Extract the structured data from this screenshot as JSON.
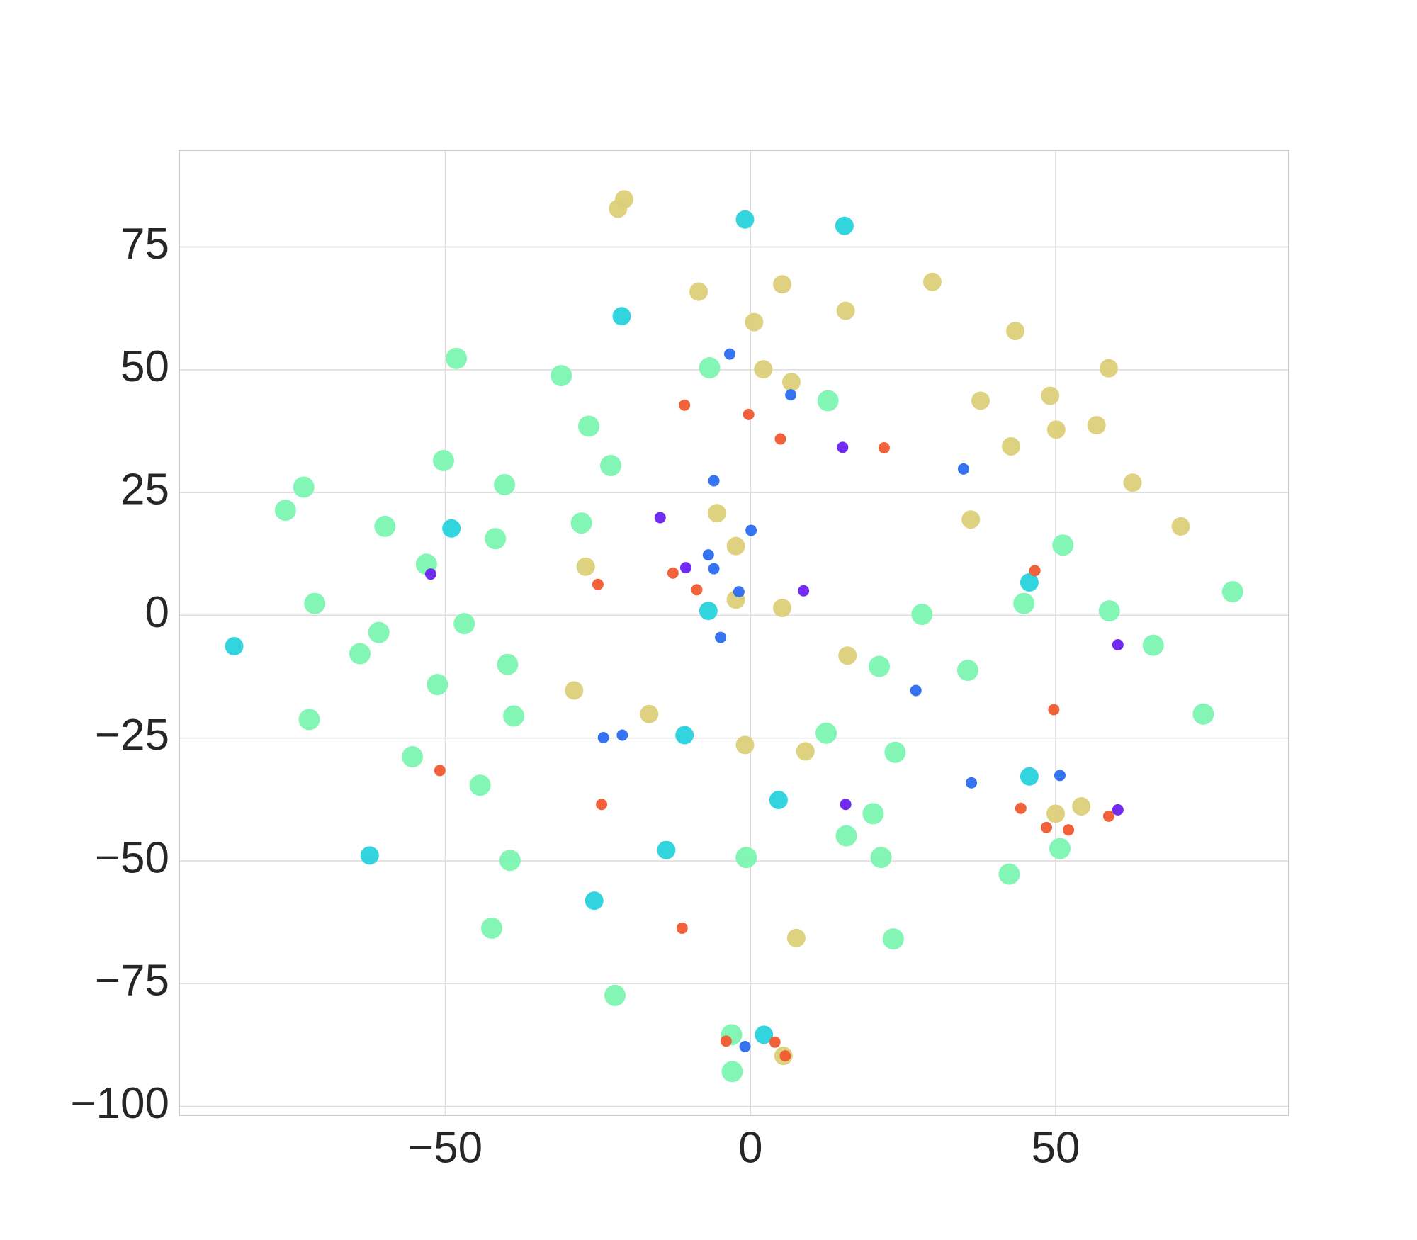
{
  "chart_data": {
    "type": "scatter",
    "xlim": [
      -93.6,
      88.2
    ],
    "ylim": [
      -101.8,
      94.7
    ],
    "xticks": [
      {
        "value": -50,
        "label": "−50"
      },
      0,
      50
    ],
    "yticks": [
      {
        "value": -100,
        "label": "−100"
      },
      {
        "value": -75,
        "label": "−75"
      },
      {
        "value": -50,
        "label": "−50"
      },
      {
        "value": -25,
        "label": "−25"
      },
      0,
      25,
      50,
      75
    ],
    "grid": true,
    "series": [
      {
        "color": "#7cf5b2",
        "x": [
          -48.2,
          -31,
          -26.5,
          -50.3,
          -40.3,
          -73.2,
          -76.2,
          -59.9,
          -22.9,
          -27.7,
          -41.8,
          -53.1,
          -71.4,
          -60.9,
          -46.9,
          -64,
          -39.8,
          -51.3,
          -72.3,
          -38.8,
          -55.4,
          -44.3,
          -39.4,
          -42.4,
          -22.2,
          -0.7,
          12.4,
          23.7,
          15.7,
          20.1,
          21.4,
          23.4,
          42.4,
          21.1,
          35.6,
          28.1,
          58.8,
          66,
          74.2,
          79,
          44.8,
          51.2,
          -6.7,
          12.7,
          50.7,
          -3.1,
          -3
        ],
        "values": [
          52.3,
          48.8,
          38.5,
          31.5,
          26.6,
          26.1,
          21.4,
          18.1,
          30.5,
          18.8,
          15.6,
          10.4,
          2.4,
          -3.5,
          -1.7,
          -7.8,
          -10,
          -14.1,
          -21.2,
          -20.5,
          -28.8,
          -34.6,
          -49.9,
          -63.7,
          -77.4,
          -49.3,
          -24,
          -27.9,
          -44.9,
          -40.4,
          -49.3,
          -65.9,
          -52.7,
          -10.4,
          -11.2,
          0.2,
          0.9,
          -6.1,
          -20.1,
          4.8,
          2.4,
          14.3,
          50.4,
          43.7,
          -47.5,
          -85.4,
          -92.9
        ]
      },
      {
        "color": "#27d3dc",
        "x": [
          -0.9,
          15.4,
          -21.1,
          -84.6,
          -62.4,
          -25.6,
          4.6,
          2.2,
          -13.8,
          -10.8,
          -6.9,
          -49,
          45.7,
          45.7
        ],
        "values": [
          80.6,
          79.3,
          60.9,
          -6.3,
          -48.9,
          -58.1,
          -37.6,
          -85.4,
          -47.8,
          -24.4,
          0.9,
          17.7,
          6.7,
          -32.8
        ]
      },
      {
        "color": "#dccf78",
        "x": [
          -20.7,
          -21.7,
          -8.5,
          5.2,
          29.8,
          0.6,
          15.6,
          43.4,
          2.1,
          6.7,
          49.1,
          58.7,
          37.7,
          50.1,
          56.7,
          42.7,
          62.6,
          70.5,
          36.1,
          -2.4,
          -5.5,
          5.2,
          -2.4,
          -16.6,
          -0.9,
          9,
          7.5,
          50,
          54.2,
          5.4,
          -28.9,
          15.9,
          -27
        ],
        "values": [
          84.7,
          82.8,
          65.9,
          67.4,
          67.9,
          59.7,
          62,
          57.9,
          50.1,
          47.5,
          44.7,
          50.3,
          43.7,
          37.8,
          38.7,
          34.4,
          27,
          18.1,
          19.5,
          14.1,
          20.8,
          1.5,
          3.2,
          -20.1,
          -26.4,
          -27.7,
          -65.7,
          -40.4,
          -38.9,
          -89.7,
          -15.3,
          -8.2,
          9.9
        ]
      },
      {
        "color": "#2a6cf0",
        "x": [
          -3.4,
          -6,
          0.1,
          -6.9,
          -6,
          -4.9,
          -1.9,
          -21,
          -24.1,
          27.1,
          50.7,
          -0.9,
          36.2,
          34.9,
          6.6
        ],
        "values": [
          53.2,
          27.4,
          17.3,
          12.3,
          9.5,
          -4.5,
          4.8,
          -24.4,
          -24.9,
          -15.3,
          -32.6,
          -87.8,
          -34.1,
          29.8,
          44.9
        ]
      },
      {
        "color": "#f05a30",
        "x": [
          -0.3,
          4.9,
          -25,
          46.6,
          -10.8,
          49.7,
          44.3,
          58.7,
          -11.2,
          -50.9,
          21.9,
          -8.8,
          5.7,
          48.5,
          52.1,
          4,
          -4,
          -24.4,
          -12.7
        ],
        "values": [
          40.9,
          35.9,
          6.3,
          9.1,
          42.8,
          -19.2,
          -39.3,
          -40.9,
          -63.7,
          -31.6,
          34.1,
          5.2,
          -89.7,
          -43.2,
          -43.7,
          -86.9,
          -86.7,
          -38.5,
          8.6
        ]
      },
      {
        "color": "#6a20f0",
        "x": [
          -52.4,
          -10.6,
          -14.8,
          15.1,
          15.6,
          60.2,
          8.7,
          60.2
        ],
        "values": [
          8.4,
          9.7,
          19.9,
          34.2,
          -38.5,
          -6,
          5,
          -39.6
        ]
      }
    ]
  }
}
